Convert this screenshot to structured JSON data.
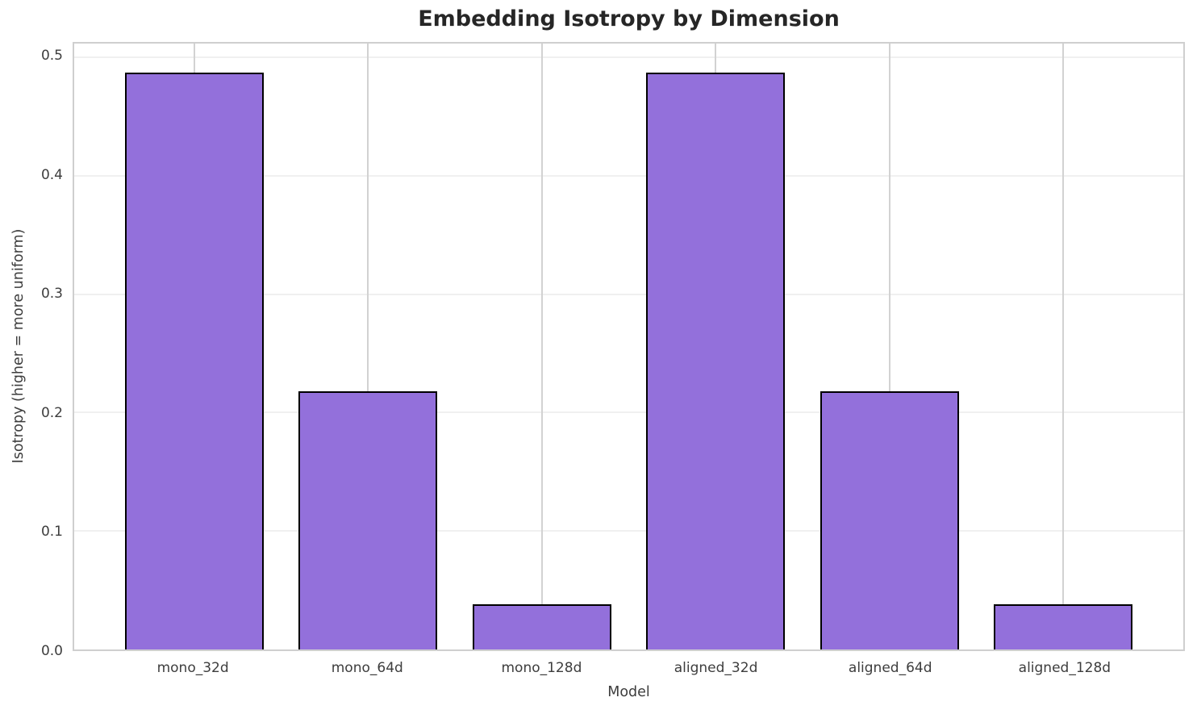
{
  "chart_data": {
    "type": "bar",
    "title": "Embedding Isotropy by Dimension",
    "xlabel": "Model",
    "ylabel": "Isotropy (higher = more uniform)",
    "categories": [
      "mono_32d",
      "mono_64d",
      "mono_128d",
      "aligned_32d",
      "aligned_64d",
      "aligned_128d"
    ],
    "values": [
      0.487,
      0.218,
      0.038,
      0.487,
      0.218,
      0.038
    ],
    "ytick_labels": [
      "0.0",
      "0.1",
      "0.2",
      "0.3",
      "0.4",
      "0.5"
    ],
    "yticks": [
      0.0,
      0.1,
      0.2,
      0.3,
      0.4,
      0.5
    ],
    "ylim": [
      0,
      0.5115
    ],
    "xlim": [
      -0.69,
      5.69
    ],
    "bar_width": 0.8,
    "grid": true,
    "legend": false,
    "colors": {
      "bar_fill": "#9370DB",
      "bar_edge": "#000000",
      "spine": "#cfcfcf",
      "hgrid": "#f0f0f0",
      "vgrid": "#d2d2d2",
      "title_text": "#262626",
      "tick_text": "#3d3d3d",
      "background": "#ffffff"
    }
  }
}
